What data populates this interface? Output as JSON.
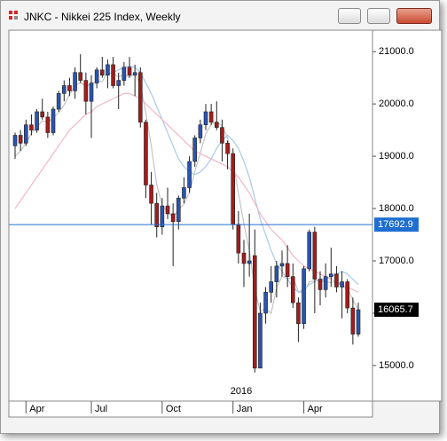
{
  "window": {
    "title": "JNKC - Nikkei 225 Index, Weekly"
  },
  "chart_data": {
    "type": "candlestick",
    "year_label": "2016",
    "categories": [
      null,
      null,
      "Apr",
      null,
      null,
      null,
      null,
      null,
      null,
      null,
      null,
      null,
      null,
      null,
      "Jul",
      null,
      null,
      null,
      null,
      null,
      null,
      null,
      null,
      null,
      null,
      null,
      null,
      "Oct",
      null,
      null,
      null,
      null,
      null,
      null,
      null,
      null,
      null,
      null,
      null,
      null,
      "Jan",
      null,
      null,
      null,
      null,
      null,
      null,
      null,
      null,
      null,
      null,
      null,
      null,
      "Apr",
      null,
      null,
      null,
      null,
      null,
      null,
      null,
      null,
      null,
      null
    ],
    "open": [
      19200,
      19400,
      19250,
      19600,
      19500,
      19850,
      19750,
      19450,
      19900,
      20200,
      20350,
      20250,
      20600,
      20450,
      20050,
      20400,
      20650,
      20550,
      20750,
      20350,
      20450,
      20700,
      20550,
      20600,
      19650,
      18450,
      18100,
      17650,
      18050,
      17900,
      17750,
      18200,
      18400,
      18900,
      19350,
      19600,
      19850,
      19650,
      19550,
      19250,
      19050,
      17700,
      17150,
      16950,
      17100,
      14950,
      16000,
      16400,
      16600,
      16900,
      16950,
      16700,
      16200,
      15800,
      16850,
      17550,
      16650,
      16450,
      16700,
      16750,
      16500,
      16600,
      16100,
      15600
    ],
    "high": [
      19450,
      19500,
      19700,
      19800,
      19900,
      20100,
      19850,
      19950,
      20250,
      20450,
      20500,
      20700,
      20950,
      20600,
      20550,
      20700,
      20900,
      20850,
      20900,
      20600,
      20800,
      20900,
      20750,
      20700,
      19700,
      18700,
      18300,
      18200,
      18400,
      18100,
      18250,
      18600,
      19000,
      19400,
      19700,
      20000,
      20000,
      20050,
      19700,
      19300,
      19150,
      17950,
      17400,
      17900,
      17600,
      16200,
      16500,
      16900,
      17000,
      17200,
      17300,
      16950,
      16300,
      16900,
      17600,
      17650,
      16800,
      16950,
      17250,
      16900,
      16800,
      16650,
      16300,
      16200
    ],
    "low": [
      18950,
      19100,
      19200,
      19400,
      19450,
      19700,
      19350,
      19400,
      19850,
      20050,
      20150,
      20100,
      20400,
      19800,
      19350,
      20300,
      20500,
      20300,
      20300,
      19900,
      20350,
      20500,
      20150,
      19550,
      18200,
      17700,
      17450,
      17500,
      17800,
      16900,
      17600,
      18100,
      18300,
      18800,
      19250,
      19500,
      19600,
      19500,
      18900,
      18750,
      17600,
      16950,
      16500,
      16700,
      14865,
      14950,
      15800,
      16200,
      16300,
      16700,
      16500,
      16100,
      15450,
      15700,
      16800,
      16000,
      16150,
      16300,
      16500,
      16400,
      15900,
      16000,
      15400,
      15550
    ],
    "close": [
      19400,
      19250,
      19600,
      19500,
      19850,
      19750,
      19450,
      19900,
      20200,
      20350,
      20250,
      20600,
      20450,
      20050,
      20400,
      20650,
      20550,
      20750,
      20350,
      20450,
      20700,
      20550,
      20600,
      19650,
      18450,
      18100,
      17650,
      18050,
      17900,
      17750,
      18200,
      18400,
      18900,
      19350,
      19600,
      19850,
      19650,
      19550,
      19250,
      19050,
      17700,
      17150,
      16950,
      17000,
      14950,
      16000,
      16400,
      16600,
      16900,
      16950,
      16700,
      16200,
      15800,
      16850,
      17550,
      16650,
      16450,
      16700,
      16750,
      16500,
      16600,
      16100,
      15600,
      16065.7
    ],
    "up_color": "#2a54b0",
    "down_color": "#a31c1c",
    "moving_averages": [
      {
        "color": "#c4c4c4",
        "values": [
          19000,
          19100,
          19250,
          19440,
          19550,
          19680,
          19640,
          19740,
          19830,
          19980,
          20180,
          20350,
          20410,
          20340,
          20380,
          20440,
          20430,
          20600,
          20580,
          20520,
          20560,
          20510,
          20570,
          20380,
          19830,
          19200,
          18460,
          18060,
          17930,
          17840,
          17980,
          18080,
          18310,
          18710,
          19060,
          19430,
          19610,
          19660,
          19580,
          19350,
          18910,
          18290,
          17710,
          17200,
          16450,
          16030,
          16090,
          16000,
          16480,
          16710,
          16660,
          16690,
          16410,
          16390,
          16600,
          16620,
          16630,
          16590,
          16590,
          16600,
          16510,
          16480,
          16250,
          16070
        ]
      },
      {
        "color": "#a9c8ea",
        "values": [
          null,
          null,
          null,
          null,
          null,
          null,
          null,
          null,
          null,
          null,
          null,
          null,
          null,
          null,
          null,
          null,
          null,
          null,
          20600,
          20650,
          20700,
          20720,
          20700,
          20600,
          20400,
          20200,
          19950,
          19700,
          19450,
          19200,
          18950,
          18800,
          18700,
          18650,
          18700,
          18800,
          18950,
          19150,
          19300,
          19400,
          19300,
          19150,
          18900,
          18600,
          18200,
          17800,
          17500,
          17200,
          16950,
          16800,
          16650,
          16500,
          16400,
          16450,
          16550,
          16600,
          16650,
          16650,
          16700,
          16750,
          16800,
          16750,
          16650,
          16550
        ]
      },
      {
        "color": "#f2b6c6",
        "values": [
          18000,
          18150,
          18300,
          18450,
          18600,
          18750,
          18900,
          19050,
          19200,
          19350,
          19500,
          19600,
          19700,
          19800,
          19850,
          19950,
          20000,
          20050,
          20100,
          20150,
          20200,
          20200,
          20150,
          20100,
          20000,
          19900,
          19800,
          19700,
          19600,
          19500,
          19400,
          19300,
          19200,
          19100,
          19050,
          19000,
          18950,
          18900,
          18850,
          18800,
          18700,
          18600,
          18450,
          18300,
          18100,
          17900,
          17750,
          17600,
          17500,
          17400,
          17250,
          17100,
          17000,
          16900,
          16850,
          16800,
          16750,
          16700,
          16650,
          16600,
          16550,
          16500,
          16450,
          16400
        ]
      }
    ],
    "ylim": [
      14320,
      21410
    ],
    "yticks": [
      {
        "value": 15000,
        "label": "15000.0"
      },
      {
        "value": 16000,
        "label": "16000.0"
      },
      {
        "value": 17000,
        "label": "17000.0"
      },
      {
        "value": 18000,
        "label": "18000.0"
      },
      {
        "value": 19000,
        "label": "19000.0"
      },
      {
        "value": 20000,
        "label": "20000.0"
      },
      {
        "value": 21000,
        "label": "21000.0"
      }
    ],
    "price_line": {
      "value": 17692.9,
      "color": "#1f6fd0"
    },
    "last_price": {
      "value": 16065.7,
      "color": "#000000"
    }
  }
}
